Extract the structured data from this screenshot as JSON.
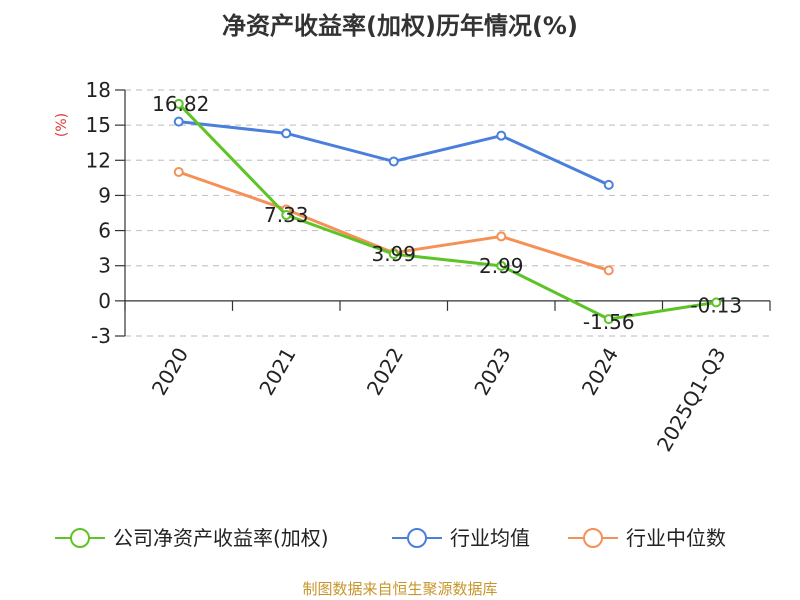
{
  "chart_data": {
    "type": "line",
    "title": "净资产收益率(加权)历年情况(%)",
    "ylabel": "(%)",
    "xlabel": "",
    "categories": [
      "2020",
      "2021",
      "2022",
      "2023",
      "2024",
      "2025Q1-Q3"
    ],
    "ylim": [
      -3,
      18
    ],
    "yticks": [
      -3,
      0,
      3,
      6,
      9,
      12,
      15,
      18
    ],
    "grid": true,
    "legend_position": "bottom",
    "series": [
      {
        "name": "公司净资产收益率(加权)",
        "color": "#5cc424",
        "values": [
          16.82,
          7.33,
          3.99,
          2.99,
          -1.56,
          -0.13
        ],
        "labels": [
          "16.82",
          "7.33",
          "3.99",
          "2.99",
          "-1.56",
          "-0.13"
        ]
      },
      {
        "name": "行业均值",
        "color": "#4a7fdc",
        "values": [
          15.3,
          14.3,
          11.9,
          14.1,
          9.9,
          null
        ]
      },
      {
        "name": "行业中位数",
        "color": "#f59056",
        "values": [
          11.0,
          7.8,
          4.1,
          5.5,
          2.6,
          null
        ]
      }
    ],
    "source": "制图数据来自恒生聚源数据库"
  },
  "colors": {
    "axis": "#333333",
    "grid": "#c8c8c8",
    "ylabel": "#d93a3a",
    "source": "#c8952b"
  }
}
